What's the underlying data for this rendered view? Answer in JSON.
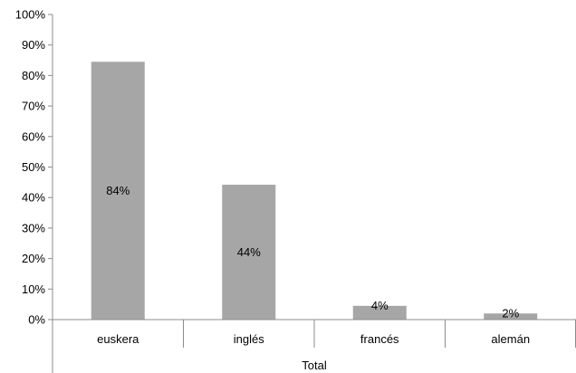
{
  "chart_data": {
    "type": "bar",
    "categories": [
      "euskera",
      "inglés",
      "francés",
      "alemán"
    ],
    "values": [
      84.5,
      44.2,
      4.5,
      2.0
    ],
    "data_labels": [
      "84%",
      "44%",
      "4%",
      "2%"
    ],
    "group_label": "Total",
    "ylim": [
      0,
      100
    ],
    "yticks": [
      0,
      10,
      20,
      30,
      40,
      50,
      60,
      70,
      80,
      90,
      100
    ],
    "ytick_labels": [
      "0%",
      "10%",
      "20%",
      "30%",
      "40%",
      "50%",
      "60%",
      "70%",
      "80%",
      "90%",
      "100%"
    ],
    "title": "",
    "xlabel": "",
    "ylabel": "",
    "grid": false,
    "legend": "none",
    "bar_color": "#a6a6a6",
    "axis_color": "#8c8c8c"
  }
}
